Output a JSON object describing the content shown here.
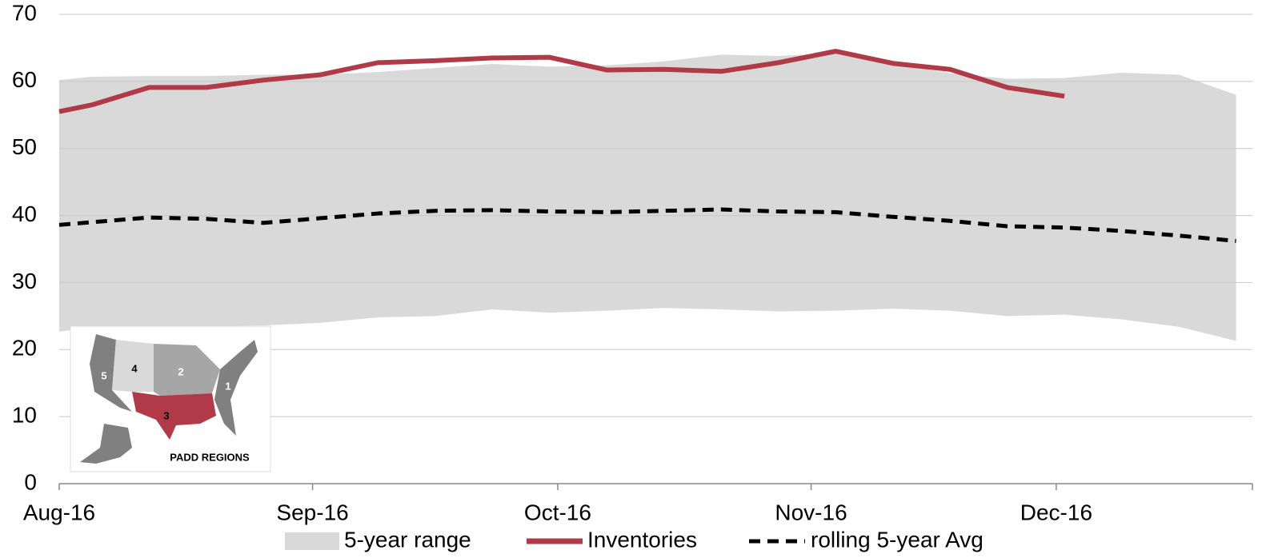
{
  "chart_data": {
    "type": "line",
    "x": [
      0,
      4,
      11,
      18,
      25,
      32,
      39,
      46,
      53,
      60,
      67,
      74,
      81,
      88,
      95,
      102,
      109,
      116,
      123,
      130,
      137,
      144
    ],
    "xlim": [
      0,
      146
    ],
    "xticks": [
      {
        "value": 0,
        "label": "Aug-16"
      },
      {
        "value": 31,
        "label": "Sep-16"
      },
      {
        "value": 61,
        "label": "Oct-16"
      },
      {
        "value": 92,
        "label": "Nov-16"
      },
      {
        "value": 122,
        "label": "Dec-16"
      }
    ],
    "ylim": [
      0,
      70
    ],
    "yticks": [
      0,
      10,
      20,
      30,
      40,
      50,
      60,
      70
    ],
    "grid": true,
    "range": {
      "name": "5-year range",
      "color": "#d9d9d9",
      "upper": [
        60.2,
        60.7,
        60.8,
        60.8,
        61.0,
        61.0,
        61.4,
        62.0,
        62.6,
        62.2,
        62.4,
        63.0,
        64.0,
        63.8,
        64.2,
        62.7,
        61.2,
        60.4,
        60.5,
        61.3,
        61.0,
        58.0
      ],
      "lower": [
        22.7,
        23.2,
        23.3,
        23.5,
        23.6,
        24.0,
        24.8,
        25.0,
        26.0,
        25.5,
        25.8,
        26.2,
        26.0,
        25.7,
        25.8,
        26.1,
        25.8,
        25.0,
        25.2,
        24.5,
        23.4,
        21.3
      ]
    },
    "series": [
      {
        "name": "Inventories",
        "color": "#b03a48",
        "dash": false,
        "values": [
          55.5,
          56.5,
          59.1,
          59.1,
          60.2,
          61.0,
          62.8,
          63.1,
          63.5,
          63.6,
          61.7,
          61.8,
          61.5,
          62.8,
          64.5,
          62.7,
          61.8,
          59.1,
          57.8,
          null,
          null,
          null
        ]
      },
      {
        "name": "rolling 5-year Avg",
        "color": "#000000",
        "dash": true,
        "values": [
          38.6,
          39.0,
          39.7,
          39.5,
          38.9,
          39.6,
          40.3,
          40.7,
          40.8,
          40.6,
          40.5,
          40.7,
          40.9,
          40.6,
          40.5,
          39.8,
          39.2,
          38.4,
          38.2,
          37.7,
          37.0,
          36.2
        ]
      }
    ],
    "inset": {
      "title": "PADD REGIONS",
      "labels": [
        "1",
        "2",
        "3",
        "4",
        "5"
      ]
    }
  }
}
